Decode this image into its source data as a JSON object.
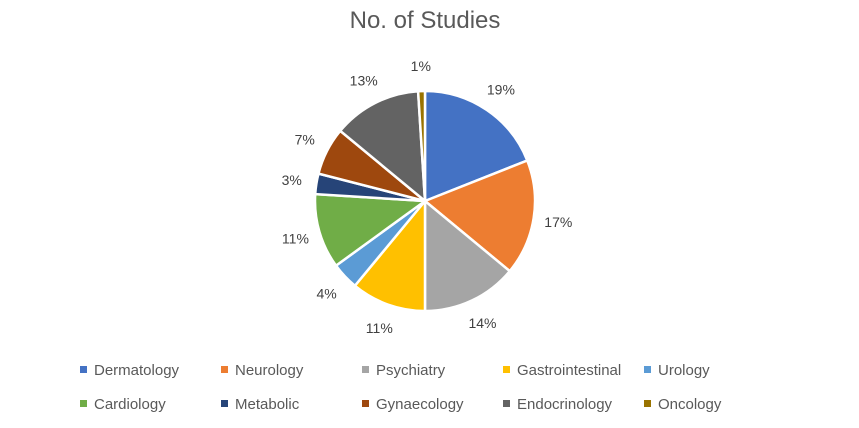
{
  "chart_data": {
    "type": "pie",
    "title": "No. of Studies",
    "categories": [
      "Dermatology",
      "Neurology",
      "Psychiatry",
      "Gastrointestinal",
      "Urology",
      "Cardiology",
      "Metabolic",
      "Gynaecology",
      "Endocrinology",
      "Oncology"
    ],
    "values": [
      19,
      17,
      14,
      11,
      4,
      11,
      3,
      7,
      13,
      1
    ],
    "labels": [
      "19%",
      "17%",
      "14%",
      "11%",
      "4%",
      "11%",
      "3%",
      "7%",
      "13%",
      "1%"
    ],
    "colors": [
      "#4472C4",
      "#ED7D31",
      "#A5A5A5",
      "#FFC000",
      "#5B9BD5",
      "#70AD47",
      "#264478",
      "#9E480E",
      "#636363",
      "#997300"
    ],
    "legend_position": "bottom",
    "data_labels": "outside-end"
  }
}
